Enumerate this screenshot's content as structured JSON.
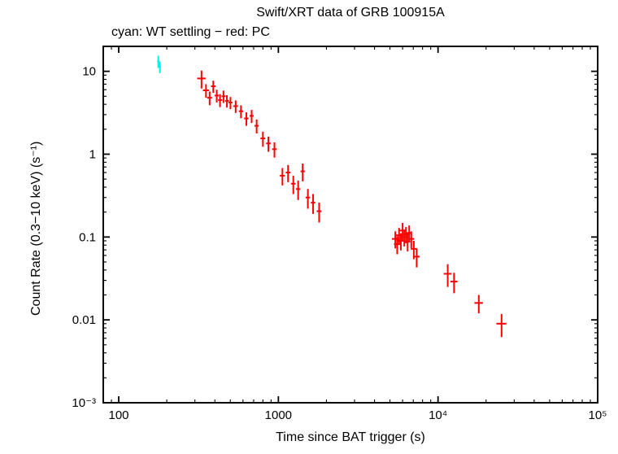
{
  "chart_data": {
    "type": "scatter",
    "title": "Swift/XRT data of GRB 100915A",
    "subtitle": "cyan: WT settling − red: PC",
    "xlabel": "Time since BAT trigger (s)",
    "ylabel": "Count Rate (0.3−10 keV) (s⁻¹)",
    "xscale": "log",
    "yscale": "log",
    "xlim": [
      80,
      100000
    ],
    "ylim": [
      0.001,
      20
    ],
    "grid": false,
    "legend": "in subtitle",
    "x_ticks": [
      {
        "value": 100,
        "label": "100"
      },
      {
        "value": 1000,
        "label": "1000"
      },
      {
        "value": 10000,
        "label": "10⁴"
      },
      {
        "value": 100000,
        "label": "10⁵"
      }
    ],
    "y_ticks": [
      {
        "value": 10,
        "label": "10"
      },
      {
        "value": 1,
        "label": "1"
      },
      {
        "value": 0.1,
        "label": "0.1"
      },
      {
        "value": 0.01,
        "label": "0.01"
      },
      {
        "value": 0.001,
        "label": "10⁻³"
      }
    ],
    "series": [
      {
        "name": "WT-settling",
        "mode": "WT settling",
        "color": "#00eeee",
        "points_format": [
          "time_s",
          "rate",
          "time_err",
          "rate_err"
        ],
        "points": [
          [
            177,
            13.2,
            3,
            2.2
          ],
          [
            181,
            11.3,
            3,
            1.8
          ]
        ]
      },
      {
        "name": "PC",
        "mode": "PC",
        "color": "#ff0000",
        "points_format": [
          "time_s",
          "rate",
          "time_err",
          "rate_err"
        ],
        "points": [
          [
            330,
            8.2,
            20,
            2.0
          ],
          [
            352,
            5.9,
            15,
            1.1
          ],
          [
            371,
            4.8,
            13,
            0.9
          ],
          [
            391,
            6.6,
            13,
            1.1
          ],
          [
            411,
            5.1,
            12,
            0.9
          ],
          [
            431,
            4.5,
            12,
            0.8
          ],
          [
            453,
            5.0,
            13,
            0.85
          ],
          [
            476,
            4.4,
            13,
            0.75
          ],
          [
            501,
            4.2,
            14,
            0.7
          ],
          [
            540,
            3.8,
            18,
            0.65
          ],
          [
            583,
            3.3,
            18,
            0.58
          ],
          [
            630,
            2.7,
            20,
            0.5
          ],
          [
            680,
            2.9,
            20,
            0.52
          ],
          [
            731,
            2.2,
            22,
            0.42
          ],
          [
            800,
            1.55,
            28,
            0.32
          ],
          [
            866,
            1.35,
            28,
            0.28
          ],
          [
            945,
            1.15,
            32,
            0.24
          ],
          [
            1060,
            0.55,
            38,
            0.13
          ],
          [
            1150,
            0.6,
            38,
            0.14
          ],
          [
            1240,
            0.44,
            40,
            0.11
          ],
          [
            1330,
            0.38,
            42,
            0.1
          ],
          [
            1420,
            0.62,
            42,
            0.15
          ],
          [
            1530,
            0.3,
            48,
            0.08
          ],
          [
            1650,
            0.26,
            52,
            0.07
          ],
          [
            1800,
            0.205,
            62,
            0.055
          ],
          [
            5400,
            0.095,
            260,
            0.022
          ],
          [
            5550,
            0.082,
            250,
            0.02
          ],
          [
            5700,
            0.105,
            250,
            0.024
          ],
          [
            5850,
            0.09,
            250,
            0.021
          ],
          [
            6000,
            0.12,
            260,
            0.028
          ],
          [
            6150,
            0.1,
            250,
            0.023
          ],
          [
            6300,
            0.108,
            250,
            0.024
          ],
          [
            6450,
            0.088,
            250,
            0.021
          ],
          [
            6600,
            0.112,
            260,
            0.026
          ],
          [
            6800,
            0.095,
            280,
            0.022
          ],
          [
            7050,
            0.072,
            300,
            0.018
          ],
          [
            7350,
            0.058,
            320,
            0.015
          ],
          [
            11500,
            0.036,
            650,
            0.011
          ],
          [
            12600,
            0.029,
            650,
            0.008
          ],
          [
            18000,
            0.016,
            1100,
            0.004
          ],
          [
            25000,
            0.009,
            1800,
            0.0028
          ]
        ]
      }
    ]
  }
}
